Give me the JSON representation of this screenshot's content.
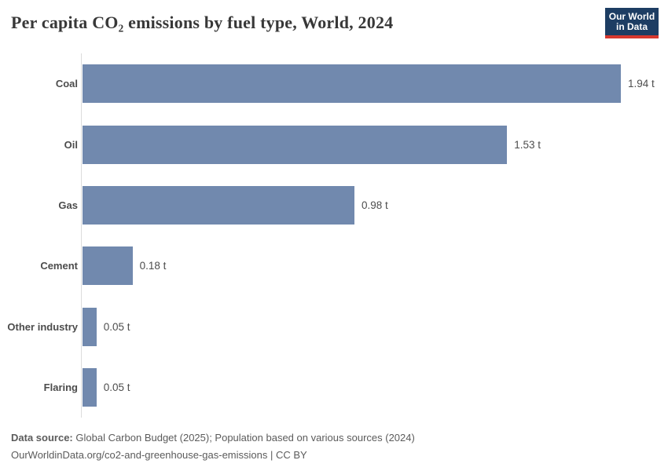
{
  "header": {
    "title": "Per capita CO₂ emissions by fuel type, World, 2024",
    "logo": {
      "line1": "Our World",
      "line2": "in Data"
    }
  },
  "chart_data": {
    "type": "bar",
    "orientation": "horizontal",
    "title": "Per capita CO₂ emissions by fuel type, World, 2024",
    "categories": [
      "Coal",
      "Oil",
      "Gas",
      "Cement",
      "Other industry",
      "Flaring"
    ],
    "values": [
      1.94,
      1.53,
      0.98,
      0.18,
      0.05,
      0.05
    ],
    "value_labels": [
      "1.94 t",
      "1.53 t",
      "0.98 t",
      "0.18 t",
      "0.05 t",
      "0.05 t"
    ],
    "unit": "t",
    "xlim": [
      0,
      1.94
    ],
    "grid": false,
    "legend": "none",
    "bar_color": "#7189ae"
  },
  "footer": {
    "data_source_label": "Data source:",
    "data_source_text": "Global Carbon Budget (2025); Population based on various sources (2024)",
    "attribution": "OurWorldinData.org/co2-and-greenhouse-gas-emissions | CC BY"
  },
  "colors": {
    "bar": "#7189ae",
    "logo_background": "#1d3d63",
    "logo_accent_red": "#d6382e",
    "axis_line": "#dcdcdc"
  }
}
